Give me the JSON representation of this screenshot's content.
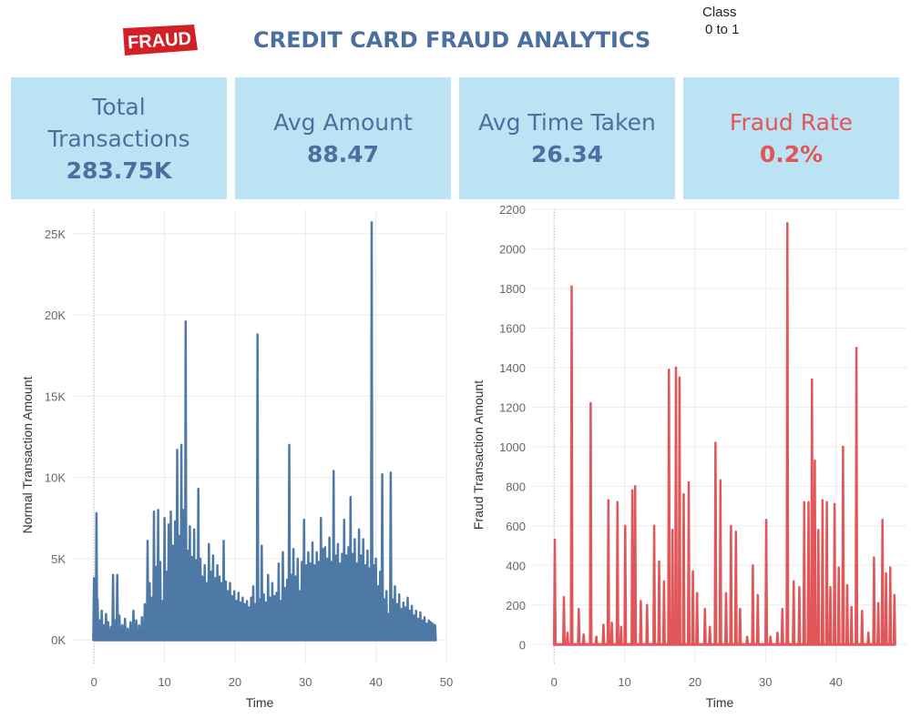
{
  "header": {
    "logo_text": "FRAUD",
    "title": "CREDIT CARD FRAUD ANALYTICS",
    "filter_label": "Class",
    "filter_value": "0 to 1"
  },
  "kpis": [
    {
      "label_lines": [
        "Total",
        "Transactions"
      ],
      "value": "283.75K",
      "color": "#4a6fa0"
    },
    {
      "label_lines": [
        "Avg Amount"
      ],
      "value": "88.47",
      "color": "#4a6fa0"
    },
    {
      "label_lines": [
        "Avg Time Taken"
      ],
      "value": "26.34",
      "color": "#4a6fa0"
    },
    {
      "label_lines": [
        "Fraud Rate"
      ],
      "value": "0.2%",
      "color": "#e15558"
    }
  ],
  "chart_data": [
    {
      "type": "line",
      "xlabel": "Time",
      "ylabel": "Normal Transaction Amount",
      "xlim": [
        -3,
        50
      ],
      "ylim": [
        -1500,
        26500
      ],
      "x_ticks": [
        0,
        10,
        20,
        30,
        40,
        50
      ],
      "y_ticks": [
        0,
        5000,
        10000,
        15000,
        20000,
        25000
      ],
      "y_tick_labels": [
        "0K",
        "5K",
        "10K",
        "15K",
        "20K",
        "25K"
      ],
      "color": "#4e79a7",
      "grid": true,
      "series": [
        {
          "x": [
            0,
            0.2,
            0.35,
            0.5,
            0.8,
            1.1,
            1.4,
            1.7,
            2,
            2.4,
            2.7,
            3,
            3.3,
            3.6,
            4,
            4.4,
            4.8,
            5.2,
            5.6,
            6,
            6.4,
            6.8,
            7.2,
            7.6,
            7.9,
            8.2,
            8.5,
            8.8,
            9.1,
            9.4,
            9.7,
            10,
            10.3,
            10.6,
            10.9,
            11.2,
            11.5,
            11.8,
            12.1,
            12.4,
            12.7,
            13,
            13.3,
            13.6,
            13.9,
            14.2,
            14.5,
            14.8,
            15.1,
            15.4,
            15.7,
            16,
            16.3,
            16.6,
            16.9,
            17.2,
            17.5,
            17.8,
            18.1,
            18.4,
            18.7,
            19,
            19.3,
            19.6,
            19.9,
            20.2,
            20.5,
            20.8,
            21.1,
            21.4,
            21.7,
            22,
            22.3,
            22.6,
            22.9,
            23.2,
            23.5,
            23.8,
            24.1,
            24.4,
            24.7,
            25,
            25.3,
            25.6,
            25.9,
            26.2,
            26.5,
            26.8,
            27.1,
            27.4,
            27.7,
            28,
            28.3,
            28.6,
            28.9,
            29.2,
            29.5,
            29.8,
            30.1,
            30.4,
            30.7,
            31,
            31.3,
            31.6,
            31.9,
            32.2,
            32.5,
            32.8,
            33.1,
            33.4,
            33.7,
            34,
            34.3,
            34.6,
            34.9,
            35.2,
            35.5,
            35.8,
            36.1,
            36.4,
            36.7,
            37,
            37.3,
            37.6,
            37.9,
            38.2,
            38.5,
            38.8,
            39.1,
            39.4,
            39.7,
            40,
            40.3,
            40.6,
            40.9,
            41.2,
            41.5,
            41.8,
            42.1,
            42.4,
            42.7,
            43,
            43.3,
            43.6,
            43.9,
            44.2,
            44.5,
            44.8,
            45.1,
            45.4,
            45.7,
            46,
            46.3,
            46.6,
            46.9,
            47.2,
            47.5,
            47.8,
            48.1,
            48.4
          ],
          "y": [
            3800,
            1500,
            7800,
            2500,
            1200,
            1800,
            900,
            1600,
            1100,
            800,
            4000,
            1200,
            4000,
            1500,
            900,
            1300,
            700,
            1100,
            1800,
            1200,
            900,
            1400,
            2200,
            6100,
            3500,
            2600,
            7900,
            4500,
            8000,
            4800,
            2400,
            7500,
            4200,
            7100,
            7900,
            5800,
            7300,
            11700,
            6400,
            12000,
            8000,
            19600,
            5500,
            7000,
            5100,
            6800,
            4900,
            9300,
            5000,
            3900,
            4600,
            3500,
            5900,
            4200,
            5200,
            3800,
            4600,
            3900,
            3500,
            6100,
            3600,
            3000,
            3500,
            2700,
            3000,
            2400,
            2900,
            2300,
            2600,
            2200,
            2400,
            2000,
            2600,
            3300,
            2200,
            18800,
            2500,
            5800,
            2800,
            2300,
            4000,
            2600,
            3500,
            2700,
            2900,
            4700,
            2400,
            5400,
            3200,
            3700,
            12000,
            4000,
            5600,
            3900,
            5000,
            3000,
            4800,
            7400,
            4600,
            5400,
            4700,
            6000,
            4600,
            5400,
            4800,
            7500,
            5600,
            5700,
            5000,
            6300,
            4800,
            10400,
            5200,
            5900,
            4700,
            5300,
            7400,
            5200,
            5700,
            8800,
            5300,
            6200,
            4700,
            6800,
            5200,
            6200,
            4600,
            5500,
            4400,
            25700,
            4600,
            5000,
            3300,
            4200,
            10200,
            2500,
            3000,
            1600,
            10300,
            2500,
            3300,
            2200,
            2800,
            1900,
            2300,
            2000,
            2600,
            1800,
            2100,
            1500,
            1800,
            1300,
            1700,
            1200,
            1400,
            1000,
            1200,
            1100,
            1000,
            900
          ]
        }
      ]
    },
    {
      "type": "line",
      "xlabel": "Time",
      "ylabel": "Fraud Transaction Amount",
      "xlim": [
        -3,
        50
      ],
      "ylim": [
        -100,
        2200
      ],
      "x_ticks": [
        0,
        10,
        20,
        30,
        40
      ],
      "y_ticks": [
        0,
        200,
        400,
        600,
        800,
        1000,
        1200,
        1400,
        1600,
        1800,
        2000,
        2200
      ],
      "y_tick_labels": [
        "0",
        "200",
        "400",
        "600",
        "800",
        "1000",
        "1200",
        "1400",
        "1600",
        "1800",
        "2000",
        "2200"
      ],
      "color": "#e15759",
      "grid": true,
      "series": [
        {
          "x": [
            0.1,
            1.4,
            1.9,
            2.5,
            3.5,
            4.2,
            5.2,
            6,
            7,
            7.7,
            8.2,
            9,
            9.5,
            10.1,
            11.1,
            11.5,
            12.3,
            13.2,
            14.2,
            14.9,
            15.6,
            16.3,
            16.8,
            17.3,
            17.8,
            18.4,
            19.1,
            19.7,
            20.3,
            21.4,
            22.1,
            22.9,
            23.6,
            24.4,
            25.1,
            25.8,
            26.4,
            27.4,
            28.2,
            28.9,
            30.1,
            30.7,
            31.7,
            32.4,
            33.1,
            34,
            34.8,
            35.5,
            36.1,
            36.6,
            37,
            37.5,
            38.1,
            38.7,
            39.2,
            39.8,
            40.4,
            41,
            41.6,
            42.2,
            42.9,
            43.7,
            44.6,
            45.4,
            46,
            46.6,
            47.1,
            47.7,
            48.3
          ],
          "y": [
            530,
            240,
            60,
            1810,
            180,
            50,
            1220,
            40,
            100,
            730,
            110,
            720,
            90,
            600,
            780,
            800,
            220,
            200,
            600,
            420,
            320,
            1390,
            580,
            1400,
            1350,
            760,
            820,
            370,
            260,
            180,
            90,
            1020,
            830,
            260,
            600,
            570,
            180,
            40,
            400,
            250,
            630,
            40,
            60,
            180,
            2130,
            320,
            290,
            720,
            720,
            1340,
            930,
            580,
            730,
            720,
            290,
            710,
            390,
            1000,
            300,
            190,
            1500,
            170,
            60,
            440,
            210,
            630,
            360,
            390,
            250
          ]
        }
      ]
    }
  ]
}
